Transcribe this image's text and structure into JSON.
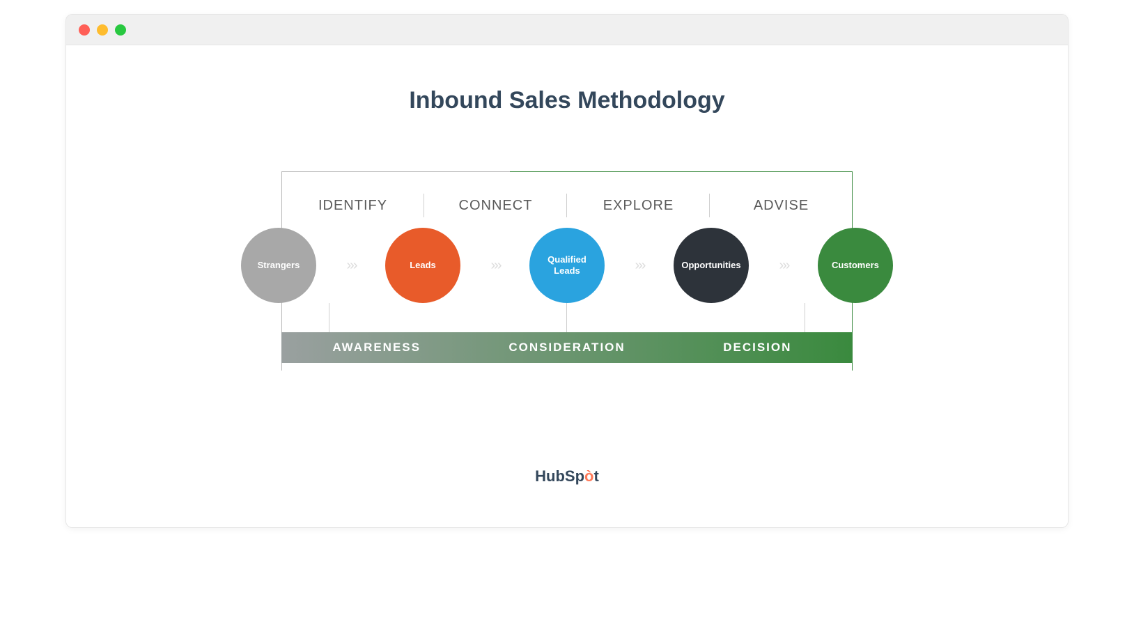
{
  "window": {
    "traffic_lights": {
      "close_color": "#ff5f57",
      "minimize_color": "#febc2e",
      "zoom_color": "#28c840"
    },
    "titlebar_bg": "#f0f0f0",
    "content_bg": "#ffffff"
  },
  "title": {
    "text": "Inbound Sales Methodology",
    "color": "#33475b",
    "font_size": 34,
    "font_weight": 700
  },
  "diagram": {
    "frame": {
      "border_color_left": "#b7b7b7",
      "border_color_right": "#3a8a3e",
      "border_color_top_left": "#b7b7b7",
      "border_color_top_right": "#3a8a3e"
    },
    "stage_labels": {
      "items": [
        "IDENTIFY",
        "CONNECT",
        "EXPLORE",
        "ADVISE"
      ],
      "font_size": 20,
      "color": "#5a5a5a",
      "separator_color": "#cfcfcf"
    },
    "nodes": [
      {
        "label": "Strangers",
        "color": "#a8a8a8",
        "text_color": "#ffffff"
      },
      {
        "label": "Leads",
        "color": "#e85b2a",
        "text_color": "#ffffff"
      },
      {
        "label": "Qualified\nLeads",
        "color": "#2aa3df",
        "text_color": "#ffffff"
      },
      {
        "label": "Opportunities",
        "color": "#2d333a",
        "text_color": "#ffffff"
      },
      {
        "label": "Customers",
        "color": "#3a8a3e",
        "text_color": "#ffffff"
      }
    ],
    "node_diameter": 108,
    "chevron": {
      "glyph": "›",
      "count_per_gap": 3,
      "color": "#dcdcdc"
    },
    "connectors": {
      "color": "#cfcfcf",
      "height": 42
    },
    "phase_bar": {
      "labels": [
        "AWARENESS",
        "CONSIDERATION",
        "DECISION"
      ],
      "text_color": "#ffffff",
      "font_size": 17,
      "gradient_from": "#9aa0a0",
      "gradient_to": "#3a8a3e",
      "height": 44
    }
  },
  "brand": {
    "text_pre": "HubSp",
    "text_accent": "ò",
    "text_post": "t",
    "color": "#33475b",
    "accent_color": "#ff7a59",
    "font_size": 22
  }
}
